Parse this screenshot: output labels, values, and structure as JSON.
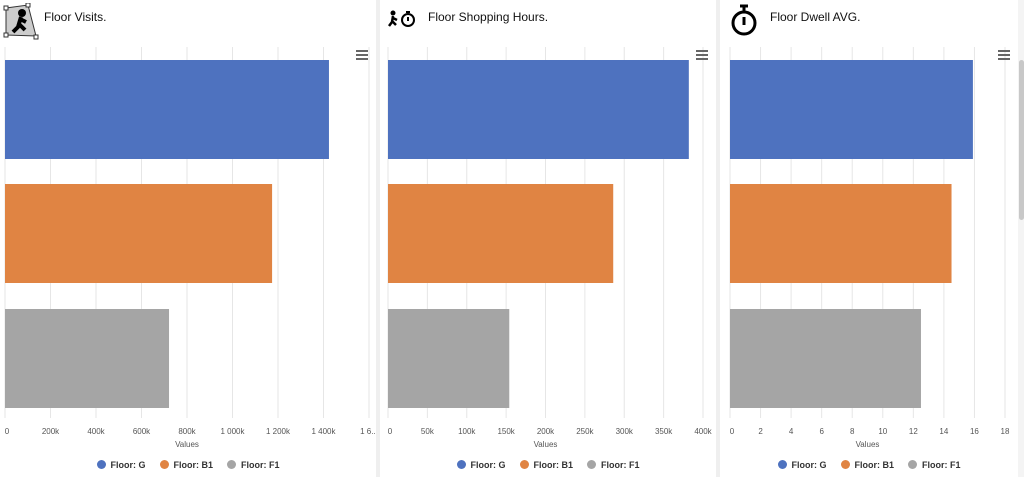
{
  "panels": [
    {
      "title": "Floor Visits.",
      "icon": "walking-person-icon",
      "xlabel": "Values",
      "chart_data": {
        "type": "bar",
        "orientation": "horizontal",
        "categories": [
          "Floor: G",
          "Floor: B1",
          "Floor: F1"
        ],
        "values": [
          1424000,
          1174000,
          721000
        ],
        "xlim": [
          0,
          1600000
        ],
        "ticks": [
          "0",
          "200k",
          "400k",
          "600k",
          "800k",
          "1 000k",
          "1 200k",
          "1 400k",
          "1 6..."
        ],
        "xlabel": "Values",
        "grid": true,
        "legend": "bottom"
      }
    },
    {
      "title": "Floor Shopping Hours.",
      "icon": "person-stopwatch-icon",
      "xlabel": "Values",
      "chart_data": {
        "type": "bar",
        "orientation": "horizontal",
        "categories": [
          "Floor: G",
          "Floor: B1",
          "Floor: F1"
        ],
        "values": [
          382000,
          286000,
          154000
        ],
        "xlim": [
          0,
          400000
        ],
        "ticks": [
          "0",
          "50k",
          "100k",
          "150k",
          "200k",
          "250k",
          "300k",
          "350k",
          "400k"
        ],
        "xlabel": "Values",
        "grid": true,
        "legend": "bottom"
      }
    },
    {
      "title": "Floor Dwell AVG.",
      "icon": "stopwatch-icon",
      "xlabel": "Values",
      "chart_data": {
        "type": "bar",
        "orientation": "horizontal",
        "categories": [
          "Floor: G",
          "Floor: B1",
          "Floor: F1"
        ],
        "values": [
          15.9,
          14.5,
          12.5
        ],
        "xlim": [
          0,
          18
        ],
        "ticks": [
          "0",
          "2",
          "4",
          "6",
          "8",
          "10",
          "12",
          "14",
          "16",
          "18"
        ],
        "xlabel": "Values",
        "grid": true,
        "legend": "bottom"
      }
    }
  ],
  "legend": [
    {
      "label": "Floor: G",
      "color": "#4e72bf"
    },
    {
      "label": "Floor: B1",
      "color": "#e08443"
    },
    {
      "label": "Floor: F1",
      "color": "#a5a5a5"
    }
  ]
}
